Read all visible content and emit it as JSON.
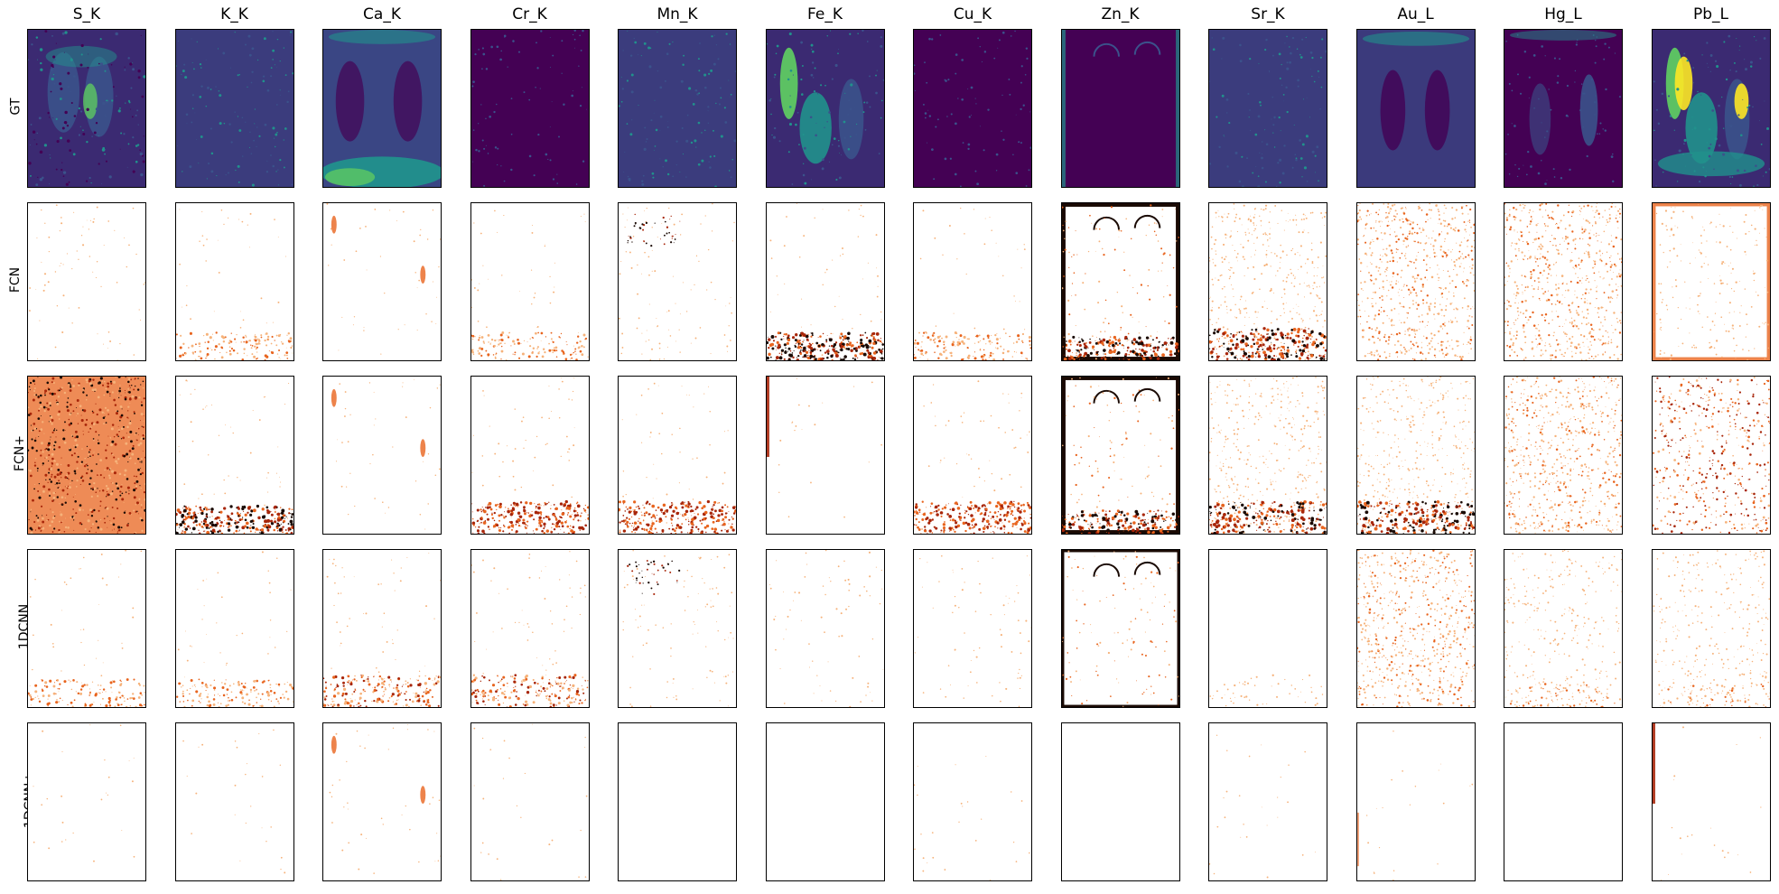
{
  "columns": [
    "S_K",
    "K_K",
    "Ca_K",
    "Cr_K",
    "Mn_K",
    "Fe_K",
    "Cu_K",
    "Zn_K",
    "Sr_K",
    "Au_L",
    "Hg_L",
    "Pb_L"
  ],
  "rows": [
    "GT",
    "FCN",
    "FCN+",
    "1DCNN",
    "1DCNN+"
  ],
  "colors": {
    "gt_background": "#3b2a72",
    "gt_dark": "#440154",
    "gt_mid": "#3b528b",
    "gt_teal": "#21918c",
    "gt_green": "#5ec962",
    "gt_yellow": "#fde725",
    "err_light": "#f6b27a",
    "err_mid": "#e8641e",
    "err_dark": "#a8260a",
    "err_black": "#1a0a04"
  },
  "panel_styles": {
    "GT": [
      "gt-mixed",
      "gt-flat",
      "gt-bright-bottom",
      "gt-dark",
      "gt-flat",
      "gt-figures",
      "gt-dark",
      "gt-dark-arches",
      "gt-flat",
      "gt-mid",
      "gt-dark-figure",
      "gt-bright-figures"
    ],
    "FCN": [
      "err-sparse",
      "err-bottom-light",
      "err-sparse-spot",
      "err-bottom-light",
      "err-sparse-dark-top",
      "err-bottom-dark",
      "err-bottom-light",
      "err-frame-black",
      "err-speckle-bottom-dark",
      "err-speckle-heavy",
      "err-speckle-heavy",
      "err-frame-orange"
    ],
    "FCN+": [
      "err-full-red",
      "err-bottom-dark",
      "err-sparse-spot",
      "err-bottom-red",
      "err-bottom-red",
      "err-left-edge",
      "err-bottom-red",
      "err-frame-black",
      "err-speckle-bottom-dark",
      "err-speckle-bottom-dark",
      "err-speckle-heavy",
      "err-speckle-red"
    ],
    "1DCNN": [
      "err-bottom-light",
      "err-bottom-light",
      "err-bottom-mid",
      "err-bottom-mid",
      "err-sparse-dark-top",
      "err-sparse",
      "err-sparse",
      "err-frame-black-light",
      "err-bottom-faint",
      "err-speckle-heavy",
      "err-speckle-light",
      "err-speckle-light"
    ],
    "1DCNN+": [
      "err-faint",
      "err-faint",
      "err-sparse-spot",
      "err-faint",
      "err-empty",
      "err-empty",
      "err-faint",
      "err-empty",
      "err-faint",
      "err-left-edge-faint",
      "err-empty",
      "err-left-edge"
    ]
  }
}
